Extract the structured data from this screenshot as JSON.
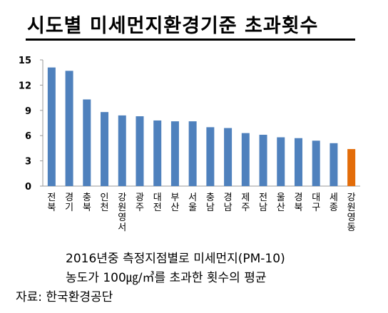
{
  "title": "시도별 미세먼지환경기준 초과횟수",
  "caption_line1": "2016년중 측정지점별로 미세먼지(PM-10)",
  "caption_line2": "농도가 100㎍/㎥를 초과한 횟수의 평균",
  "source": "자료: 한국환경공단",
  "chart_data": {
    "type": "bar",
    "title": "시도별 미세먼지환경기준 초과횟수",
    "xlabel": "",
    "ylabel": "",
    "ylim": [
      0,
      15
    ],
    "yticks": [
      0,
      3,
      6,
      9,
      12,
      15
    ],
    "grid": false,
    "legend": "none",
    "categories": [
      "전북",
      "경기",
      "충북",
      "인천",
      "강원(영서)",
      "광주",
      "대전",
      "부산",
      "서울",
      "충남",
      "경남",
      "제주",
      "전남",
      "울산",
      "경북",
      "대구",
      "세종",
      "강원(영동)"
    ],
    "category_lines": [
      [
        "전",
        "북"
      ],
      [
        "경",
        "기"
      ],
      [
        "충",
        "북"
      ],
      [
        "인",
        "천"
      ],
      [
        "강",
        "원",
        "영",
        "서"
      ],
      [
        "광",
        "주"
      ],
      [
        "대",
        "전"
      ],
      [
        "부",
        "산"
      ],
      [
        "서",
        "울"
      ],
      [
        "충",
        "남"
      ],
      [
        "경",
        "남"
      ],
      [
        "제",
        "주"
      ],
      [
        "전",
        "남"
      ],
      [
        "울",
        "산"
      ],
      [
        "경",
        "북"
      ],
      [
        "대",
        "구"
      ],
      [
        "세",
        "종"
      ],
      [
        "강",
        "원",
        "영",
        "동"
      ]
    ],
    "values": [
      14.1,
      13.7,
      10.3,
      8.8,
      8.4,
      8.3,
      7.8,
      7.7,
      7.7,
      7.0,
      6.9,
      6.3,
      6.1,
      5.8,
      5.7,
      5.4,
      5.1,
      4.4
    ],
    "colors": {
      "bar": "#4f81bd",
      "highlight": "#e36c09"
    },
    "highlight_index": 17
  }
}
